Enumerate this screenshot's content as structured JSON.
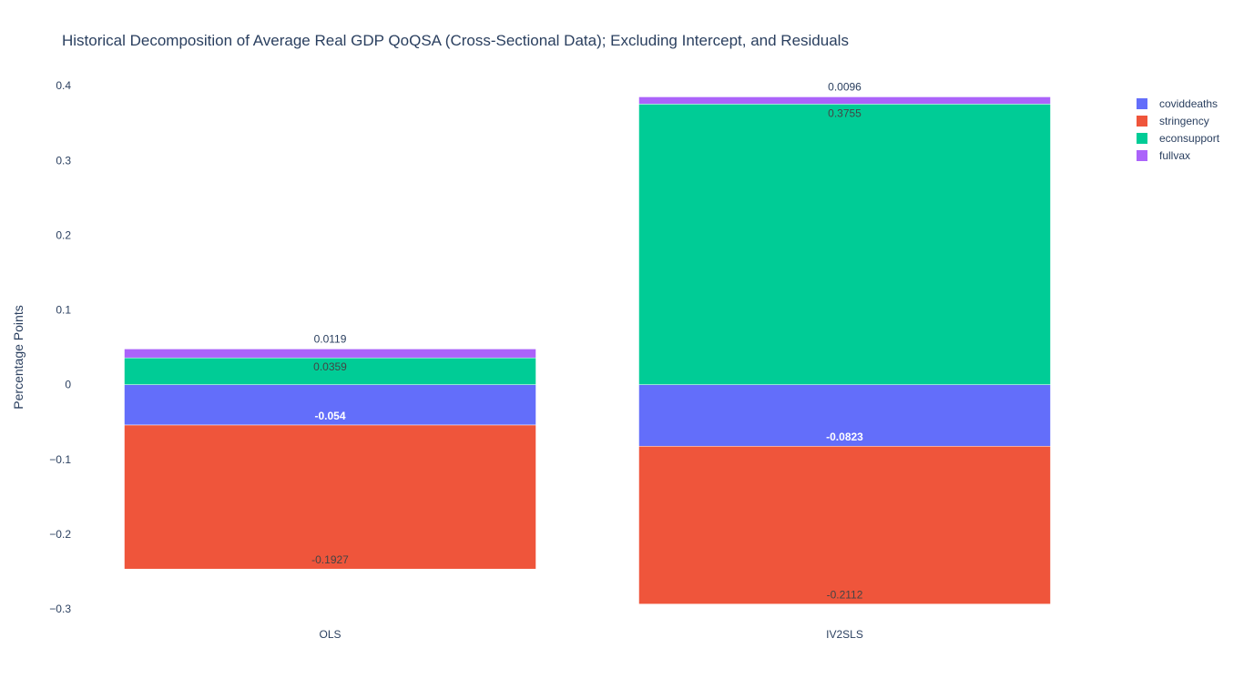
{
  "chart_data": {
    "type": "bar",
    "barmode": "relative",
    "title": "Historical Decomposition of Average Real GDP QoQSA (Cross-Sectional Data); Excluding Intercept, and Residuals",
    "xlabel": "",
    "ylabel": "Percentage Points",
    "categories": [
      "OLS",
      "IV2SLS"
    ],
    "ylim": [
      -0.3,
      0.41
    ],
    "yticks": [
      {
        "value": 0.4,
        "label": "0.4"
      },
      {
        "value": 0.3,
        "label": "0.3"
      },
      {
        "value": 0.2,
        "label": "0.2"
      },
      {
        "value": 0.1,
        "label": "0.1"
      },
      {
        "value": 0,
        "label": "0"
      },
      {
        "value": -0.1,
        "label": "−0.1"
      },
      {
        "value": -0.2,
        "label": "−0.2"
      },
      {
        "value": -0.3,
        "label": "−0.3"
      }
    ],
    "grid": false,
    "legend_position": "top-right",
    "series": [
      {
        "name": "coviddeaths",
        "color": "#636efa",
        "values": [
          -0.054,
          -0.0823
        ],
        "labels": [
          "-0.054",
          "-0.0823"
        ],
        "label_color": "#ffffff"
      },
      {
        "name": "stringency",
        "color": "#ef553b",
        "values": [
          -0.1927,
          -0.2112
        ],
        "labels": [
          "-0.1927",
          "-0.2112"
        ],
        "label_color": "#444444"
      },
      {
        "name": "econsupport",
        "color": "#00cc96",
        "values": [
          0.0359,
          0.3755
        ],
        "labels": [
          "0.0359",
          "0.3755"
        ],
        "label_color": "#444444"
      },
      {
        "name": "fullvax",
        "color": "#ab63fa",
        "values": [
          0.0119,
          0.0096
        ],
        "labels": [
          "0.0119",
          "0.0096"
        ],
        "label_color": "#2a3f5f"
      }
    ]
  }
}
